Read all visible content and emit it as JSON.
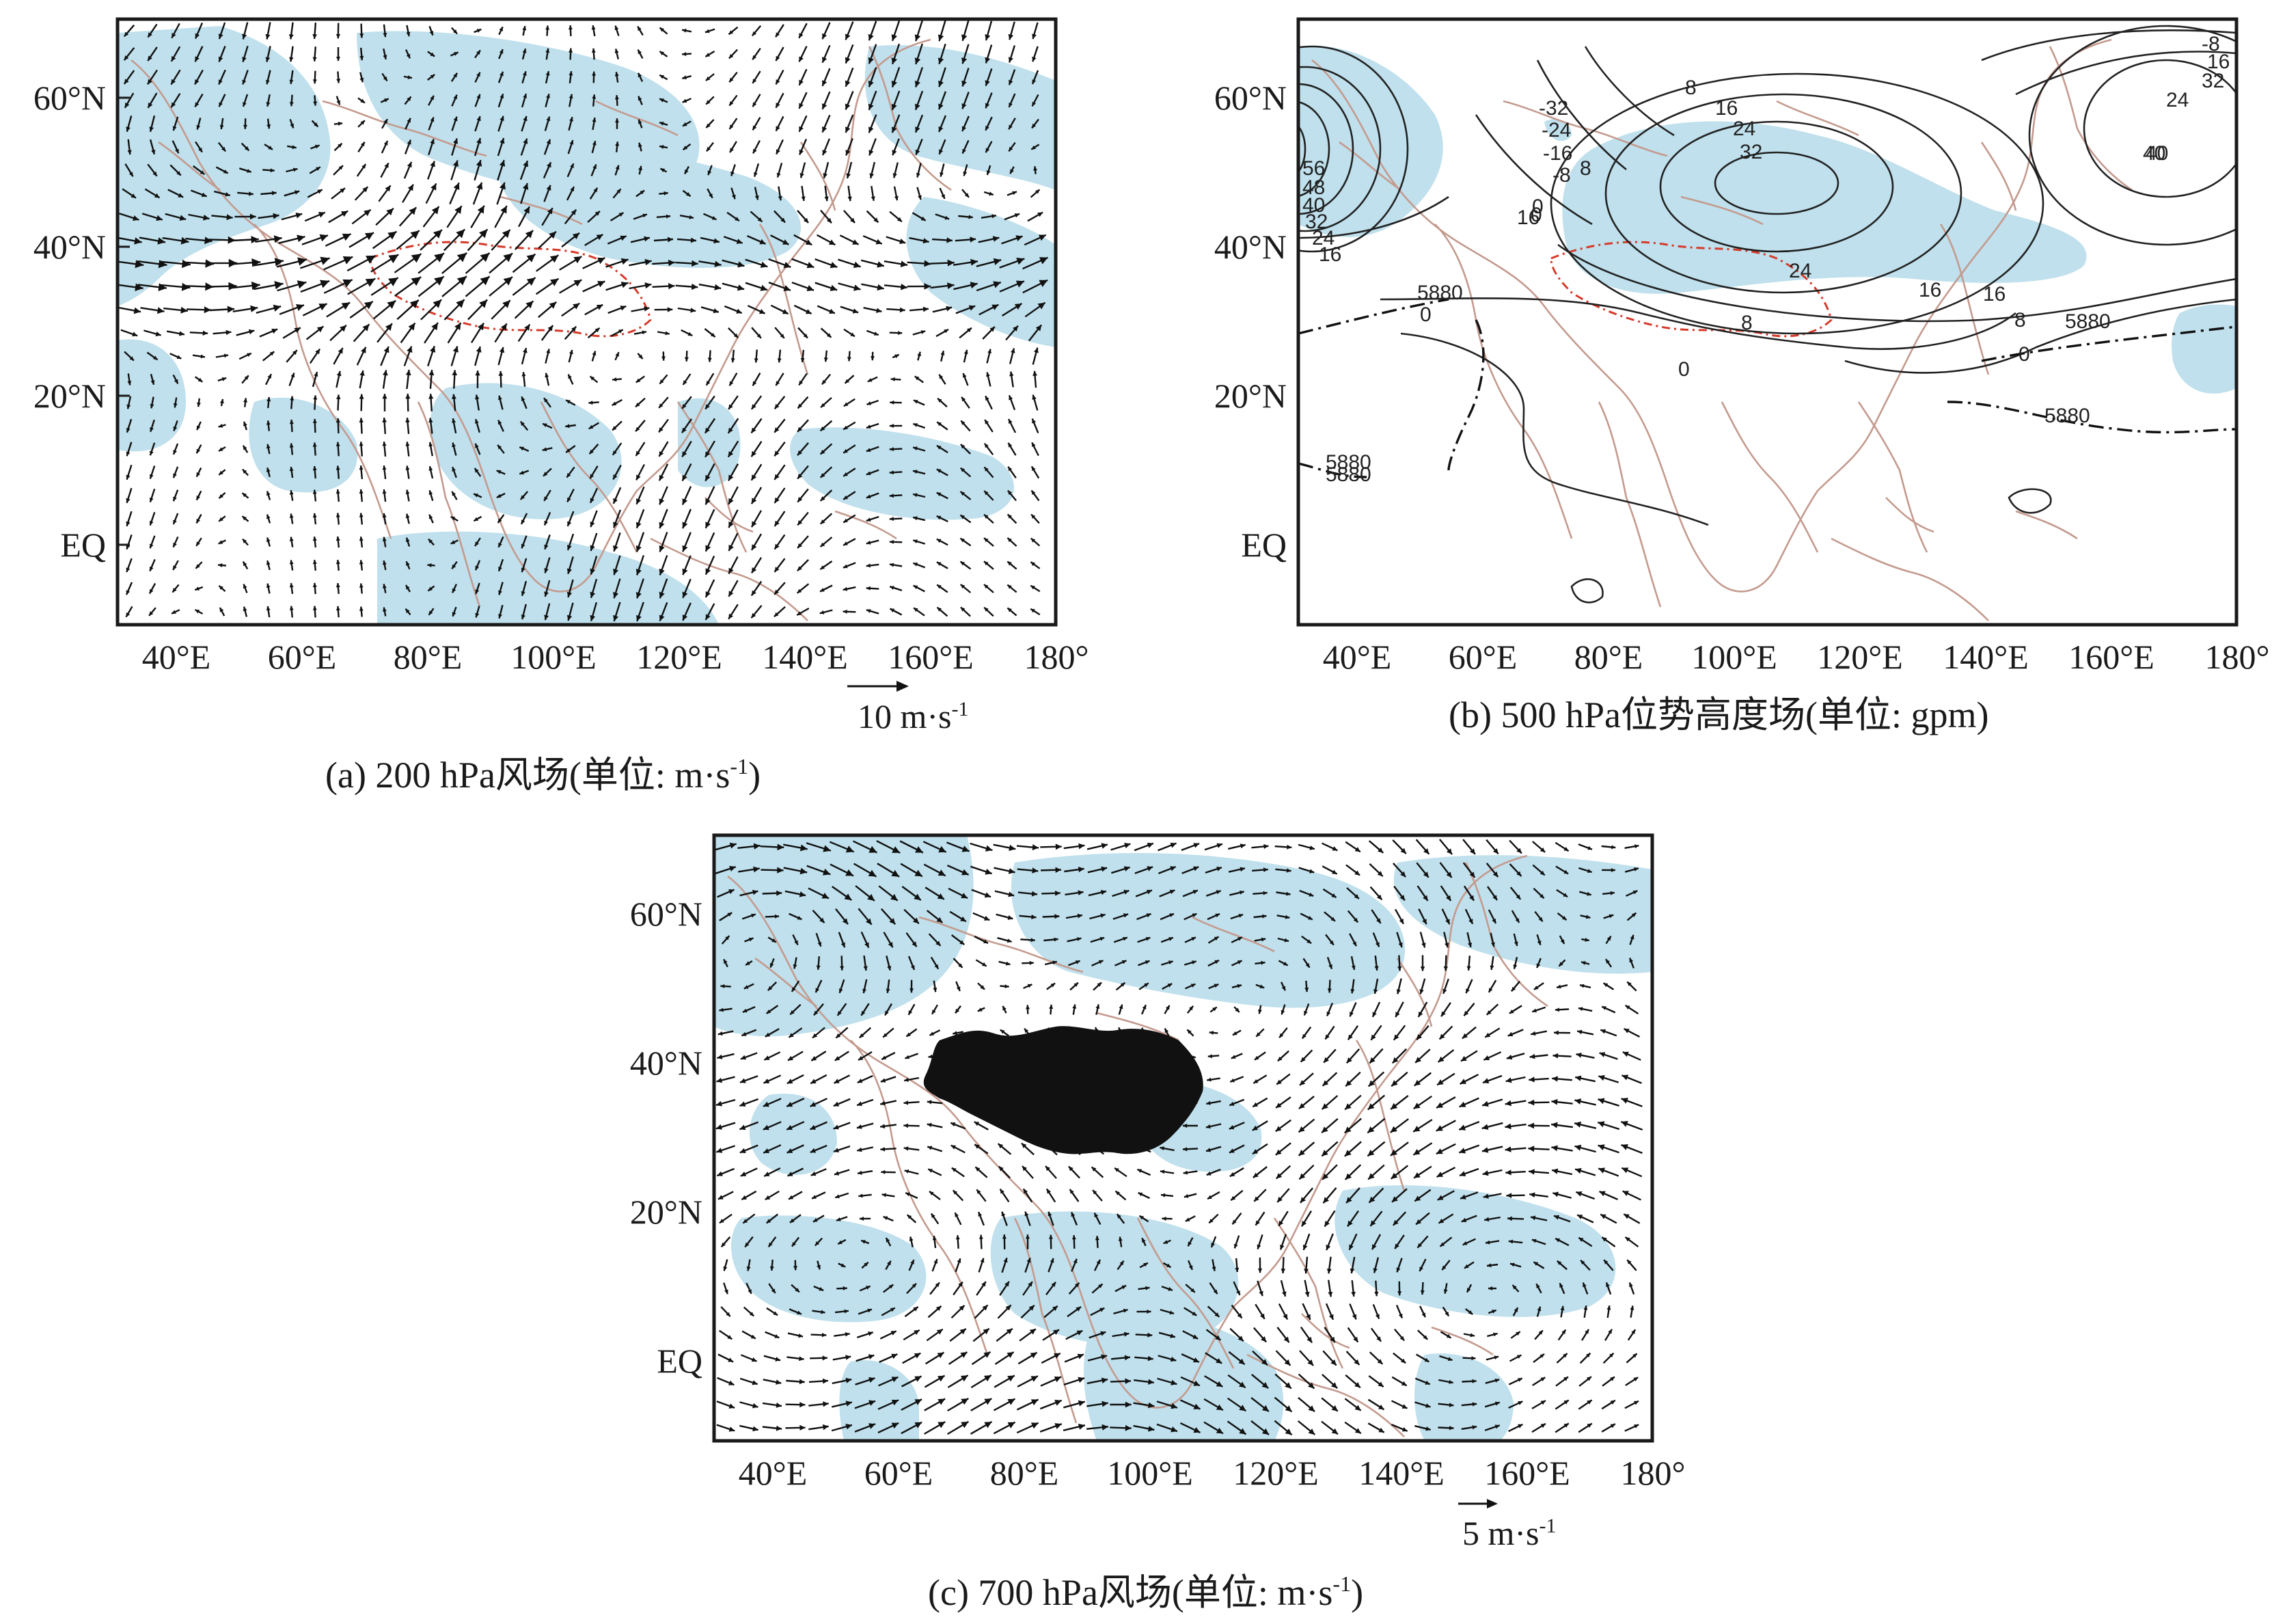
{
  "colors": {
    "shading": "#bfe0ec",
    "coastline": "#c49a8e",
    "plateau_border": "#d63a2a",
    "plateau_fill": "#111111",
    "ink": "#1a1a1a"
  },
  "lat_labels": [
    "60°N",
    "40°N",
    "20°N",
    "EQ"
  ],
  "lon_labels": [
    "40°E",
    "60°E",
    "80°E",
    "100°E",
    "120°E",
    "140°E",
    "160°E",
    "180°"
  ],
  "panels": {
    "a": {
      "caption": "(a) 200 hPa风场(单位: m·s",
      "caption_sup": "-1",
      "caption_end": ")",
      "ref_label": "10 m·s",
      "ref_sup": "-1",
      "ref_speed": 10
    },
    "b": {
      "caption": "(b) 500 hPa位势高度场(单位: gpm)",
      "contour_labels": [
        "-32",
        "-24",
        "-16",
        "-8",
        "0",
        "8",
        "16",
        "24",
        "32",
        "40",
        "56",
        "48",
        "40",
        "32",
        "24",
        "16",
        "5880",
        "0",
        "24",
        "16",
        "8",
        "0",
        "0",
        "-8",
        "16",
        "32",
        "24",
        "16",
        "8",
        "40",
        "16",
        "8",
        "5880",
        "0",
        "5880",
        "5880",
        "5880"
      ]
    },
    "c": {
      "caption": "(c) 700 hPa风场(单位: m·s",
      "caption_sup": "-1",
      "caption_end": ")",
      "ref_label": "5 m·s",
      "ref_sup": "-1",
      "ref_speed": 5
    }
  }
}
